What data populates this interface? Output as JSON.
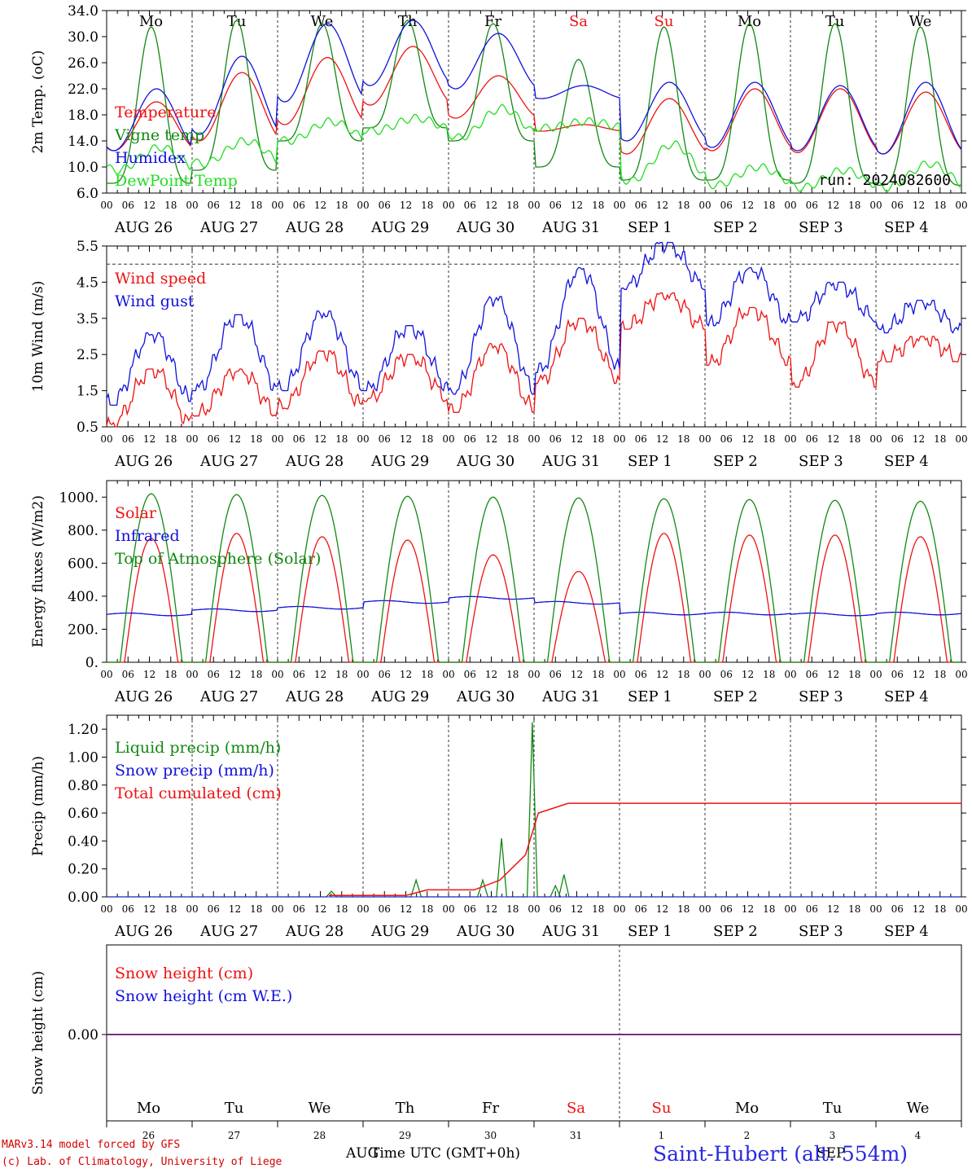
{
  "footer": {
    "model": "MARv3.14 model forced by GFS",
    "copyright": "(c) Lab. of Climatology, University of Liege",
    "time_label": "Time UTC (GMT+0h)",
    "month_left": "AUG",
    "month_right": "SEP",
    "station": "Saint-Hubert (alt. 554m)"
  },
  "run_label": "run: 2024082600",
  "days": [
    {
      "dow": "Mo",
      "date": "AUG 26",
      "num": "26",
      "weekend": false
    },
    {
      "dow": "Tu",
      "date": "AUG 27",
      "num": "27",
      "weekend": false
    },
    {
      "dow": "We",
      "date": "AUG 28",
      "num": "28",
      "weekend": false
    },
    {
      "dow": "Th",
      "date": "AUG 29",
      "num": "29",
      "weekend": false
    },
    {
      "dow": "Fr",
      "date": "AUG 30",
      "num": "30",
      "weekend": false
    },
    {
      "dow": "Sa",
      "date": "AUG 31",
      "num": "31",
      "weekend": true
    },
    {
      "dow": "Su",
      "date": "SEP  1",
      "num": "1",
      "weekend": true
    },
    {
      "dow": "Mo",
      "date": "SEP  2",
      "num": "2",
      "weekend": false
    },
    {
      "dow": "Tu",
      "date": "SEP  3",
      "num": "3",
      "weekend": false
    },
    {
      "dow": "We",
      "date": "SEP  4",
      "num": "4",
      "weekend": false
    }
  ],
  "hour_ticks": [
    "00",
    "06",
    "12",
    "18"
  ],
  "colors": {
    "red": "#ee1111",
    "green": "#118811",
    "blue": "#1111dd",
    "lightgreen": "#22dd22",
    "purple": "#7a2a8a",
    "weekend": "#ee1111"
  },
  "chart_data": [
    {
      "type": "line",
      "ylabel": "2m Temp. (oC)",
      "ylim": [
        6,
        34
      ],
      "yticks": [
        "6.0",
        "10.0",
        "14.0",
        "18.0",
        "22.0",
        "26.0",
        "30.0",
        "34.0"
      ],
      "series": [
        {
          "name": "Temperature",
          "color": "red",
          "daily_min": [
            12.5,
            14,
            16.5,
            19.5,
            17.5,
            15.5,
            12,
            12.5,
            12.2,
            12
          ],
          "daily_max": [
            20,
            24.5,
            26.8,
            28.5,
            24,
            16.5,
            20.5,
            22,
            22,
            21.5
          ]
        },
        {
          "name": "Vigne temp",
          "color": "green",
          "daily_min": [
            7.5,
            9.5,
            14,
            16,
            14,
            10,
            8,
            8,
            7.5,
            7.2
          ],
          "daily_max": [
            31.5,
            32.5,
            32,
            32.5,
            32,
            26.5,
            31.5,
            32,
            32,
            31.5
          ]
        },
        {
          "name": "Humidex",
          "color": "blue",
          "daily_min": [
            12.5,
            15,
            20,
            22.5,
            22,
            20.5,
            14,
            13,
            12.5,
            12
          ],
          "daily_max": [
            22,
            27,
            32,
            32.5,
            30.5,
            22.5,
            23,
            23,
            22.5,
            23
          ]
        },
        {
          "name": "DewPoint Temp",
          "color": "lightgreen",
          "daily_min": [
            9.5,
            10.5,
            14,
            15.5,
            14.5,
            16,
            7.8,
            7.2,
            6.8,
            6.8
          ],
          "daily_max": [
            13,
            14,
            17,
            17.5,
            19,
            17,
            13.5,
            10,
            9.5,
            10.5
          ]
        }
      ]
    },
    {
      "type": "line",
      "ylabel": "10m Wind (m/s)",
      "ylim": [
        0.5,
        5.5
      ],
      "yticks": [
        "0.5",
        "1.5",
        "2.5",
        "3.5",
        "4.5",
        "5.5"
      ],
      "reference_line": 5,
      "series": [
        {
          "name": "Wind speed",
          "color": "red",
          "daily_min": [
            0.5,
            0.8,
            1,
            1.2,
            0.9,
            1.7,
            3.2,
            2.2,
            1.6,
            2.3
          ],
          "daily_max": [
            2.1,
            2.1,
            2.6,
            2.5,
            2.8,
            3.5,
            4.2,
            3.8,
            3.4,
            3.0
          ]
        },
        {
          "name": "Wind gust",
          "color": "blue",
          "daily_min": [
            1.1,
            1.5,
            1.5,
            1.5,
            1.4,
            2,
            4.3,
            3.3,
            3.4,
            3.1
          ],
          "daily_max": [
            3.1,
            3.6,
            3.7,
            3.3,
            4.1,
            4.9,
            5.6,
            4.9,
            4.5,
            4.0
          ]
        }
      ]
    },
    {
      "type": "line",
      "ylabel": "Energy fluxes (W/m2)",
      "ylim": [
        0,
        1100
      ],
      "yticks": [
        "0.",
        "200.",
        "400.",
        "600.",
        "800.",
        "1000."
      ],
      "series": [
        {
          "name": "Solar",
          "color": "red",
          "daily_max": [
            750,
            780,
            760,
            740,
            650,
            550,
            780,
            770,
            770,
            760
          ]
        },
        {
          "name": "Infrared",
          "color": "blue",
          "daily_mean": [
            290,
            315,
            330,
            365,
            390,
            360,
            295,
            295,
            290,
            295
          ]
        },
        {
          "name": "Top of Atmosphere (Solar)",
          "color": "green",
          "daily_max": [
            1020,
            1015,
            1010,
            1005,
            1000,
            995,
            990,
            985,
            980,
            975
          ]
        }
      ]
    },
    {
      "type": "line",
      "ylabel": "Precip (mm/h)",
      "ylim": [
        0,
        1.3
      ],
      "yticks": [
        "0.00",
        "0.20",
        "0.40",
        "0.60",
        "0.80",
        "1.00",
        "1.20"
      ],
      "series": [
        {
          "name": "Liquid precip (mm/h)",
          "color": "green",
          "peaks": [
            [
              2.63,
              0.04
            ],
            [
              3.62,
              0.12
            ],
            [
              4.4,
              0.12
            ],
            [
              4.62,
              0.42
            ],
            [
              4.98,
              1.25
            ],
            [
              5.25,
              0.08
            ],
            [
              5.35,
              0.16
            ]
          ]
        },
        {
          "name": "Snow precip (mm/h)",
          "color": "blue",
          "values_constant": 0
        },
        {
          "name": "Total cumulated (cm)",
          "color": "red",
          "points": [
            [
              2.6,
              0.01
            ],
            [
              3.5,
              0.01
            ],
            [
              3.75,
              0.05
            ],
            [
              4.3,
              0.05
            ],
            [
              4.6,
              0.12
            ],
            [
              4.9,
              0.3
            ],
            [
              5.05,
              0.6
            ],
            [
              5.4,
              0.67
            ],
            [
              10,
              0.67
            ]
          ]
        }
      ]
    },
    {
      "type": "line",
      "ylabel": "Snow height (cm)",
      "ytick": "0.00",
      "series": [
        {
          "name": "Snow height (cm)",
          "color": "red",
          "values_constant": 0
        },
        {
          "name": "Snow height (cm W.E.)",
          "color": "blue",
          "values_constant": 0
        }
      ]
    }
  ]
}
